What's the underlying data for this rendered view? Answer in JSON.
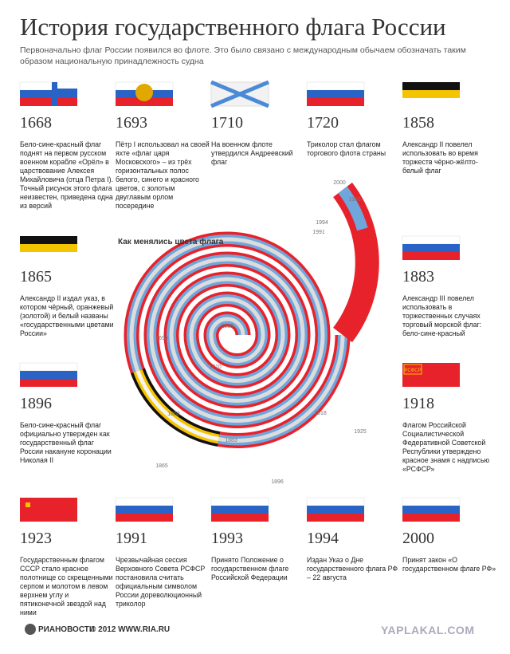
{
  "title": "История государственного флага России",
  "subtitle": "Первоначально флаг России появился во флоте. Это было связано с международным обычаем обозначать таким образом национальную принадлежность судна",
  "entries": [
    {
      "year": "1668",
      "text": "Бело-сине-красный флаг поднят на первом русском военном корабле «Орёл» в царствование Алексея Михайловича (отца Петра I). Точный рисунок этого флага неизвестен, приведена одна из версий"
    },
    {
      "year": "1693",
      "text": "Пётр I использовал на своей яхте «флаг царя Московского» – из трёх горизонтальных полос белого, синего и красного цветов, с золотым двуглавым орлом посередине"
    },
    {
      "year": "1710",
      "text": "На военном флоте утвердился Андреевский флаг"
    },
    {
      "year": "1720",
      "text": "Триколор стал флагом торгового флота страны"
    },
    {
      "year": "1858",
      "text": "Александр II повелел использовать во время торжеств чёрно-жёлто-белый флаг"
    },
    {
      "year": "1865",
      "text": "Александр II издал указ, в котором чёрный, оранжевый (золотой) и белый названы «государственными цветами России»"
    },
    {
      "year": "1883",
      "text": "Александр III повелел использовать в торжественных случаях торговый морской флаг: бело-сине-красный"
    },
    {
      "year": "1896",
      "text": "Бело-сине-красный флаг официально утвержден как государственный флаг России накануне коронации Николая II"
    },
    {
      "year": "1918",
      "text": "Флагом Российской Социалистической Федеративной Советской Республики утверждено красное знамя с надписью «РСФСР»",
      "flag_text": "РСФСР"
    },
    {
      "year": "1923",
      "text": "Государственным флагом СССР стало красное полотнище со скрещенными серпом и молотом в левом верхнем углу и пятиконечной звездой над ними"
    },
    {
      "year": "1991",
      "text": "Чрезвычайная сессия Верховного Совета РСФСР постановила считать официальным символом России дореволюционный триколор"
    },
    {
      "year": "1993",
      "text": "Принято Положение о государственном флаге Российской Федерации"
    },
    {
      "year": "1994",
      "text": "Издан Указ о Дне государственного флага РФ – 22 августа"
    },
    {
      "year": "2000",
      "text": "Принят закон «О государственном флаге РФ»"
    }
  ],
  "spiral": {
    "title": "Как менялись цвета флага",
    "labels": [
      "1668",
      "1693",
      "1710",
      "1858",
      "1865",
      "1883",
      "1896",
      "1918",
      "1925",
      "1991",
      "1993",
      "1994",
      "2000"
    ]
  },
  "footer": {
    "logo": "РИАНОВОСТИ",
    "source": "© 2012 WWW.RIA.RU",
    "watermark": "YAPLAKAL.COM"
  }
}
